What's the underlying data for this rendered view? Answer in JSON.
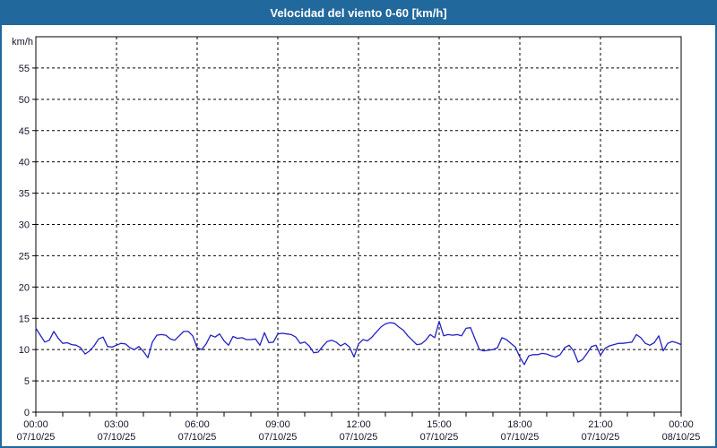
{
  "window": {
    "title": "Velocidad del viento 0-60 [km/h]"
  },
  "colors": {
    "frame": "#21689c",
    "title_text": "#ffffff",
    "plot_bg": "#ffffff",
    "axis": "#000000",
    "grid": "#000000",
    "text": "#14142a",
    "line": "#2222c2"
  },
  "y_axis": {
    "unit_label": "km/h",
    "min": 0,
    "max": 60,
    "tick_step": 5,
    "tick_labels": [
      "0",
      "5",
      "10",
      "15",
      "20",
      "25",
      "30",
      "35",
      "40",
      "45",
      "50",
      "55"
    ]
  },
  "x_axis": {
    "minor_tick_hours": 1,
    "major_tick_hours": 3,
    "labels": [
      {
        "time": "00:00",
        "date": "07/10/25"
      },
      {
        "time": "03:00",
        "date": "07/10/25"
      },
      {
        "time": "06:00",
        "date": "07/10/25"
      },
      {
        "time": "09:00",
        "date": "07/10/25"
      },
      {
        "time": "12:00",
        "date": "07/10/25"
      },
      {
        "time": "15:00",
        "date": "07/10/25"
      },
      {
        "time": "18:00",
        "date": "07/10/25"
      },
      {
        "time": "21:00",
        "date": "07/10/25"
      },
      {
        "time": "00:00",
        "date": "08/10/25"
      }
    ]
  },
  "chart_data": {
    "type": "line",
    "title": "Velocidad del viento 0-60 [km/h]",
    "series_name": "Velocidad del viento",
    "ylabel": "km/h",
    "ylim": [
      0,
      60
    ],
    "y_tick_step": 5,
    "x_start": "07/10/25 00:00",
    "x_end": "08/10/25 00:00",
    "sample_interval_minutes": 10,
    "grid": true,
    "legend": false,
    "values": [
      13.4,
      12.3,
      11.2,
      11.5,
      12.9,
      11.8,
      11.0,
      11.1,
      10.8,
      10.7,
      10.3,
      9.3,
      9.8,
      10.6,
      11.7,
      12.0,
      10.5,
      10.4,
      10.7,
      11.0,
      10.9,
      10.3,
      10.0,
      10.5,
      9.7,
      8.7,
      11.2,
      12.3,
      12.4,
      12.3,
      11.7,
      11.5,
      12.2,
      12.9,
      12.9,
      12.2,
      10.3,
      10.0,
      10.9,
      12.3,
      12.0,
      12.5,
      11.4,
      10.7,
      12.1,
      11.8,
      11.9,
      11.6,
      11.6,
      11.7,
      10.7,
      12.7,
      11.1,
      11.2,
      12.5,
      12.6,
      12.5,
      12.4,
      12.0,
      11.0,
      11.2,
      10.6,
      9.5,
      9.6,
      10.5,
      11.3,
      11.5,
      11.2,
      10.6,
      11.0,
      10.4,
      8.8,
      10.9,
      11.6,
      11.4,
      12.0,
      12.8,
      13.6,
      14.1,
      14.3,
      14.2,
      13.6,
      13.1,
      12.2,
      11.5,
      10.8,
      10.9,
      11.5,
      12.4,
      11.9,
      14.5,
      12.2,
      12.4,
      12.3,
      12.4,
      12.2,
      13.4,
      13.5,
      11.7,
      10.0,
      9.8,
      9.9,
      10.0,
      10.3,
      11.9,
      11.6,
      11.0,
      10.4,
      8.8,
      7.6,
      9.0,
      9.2,
      9.2,
      9.4,
      9.3,
      9.0,
      8.8,
      9.2,
      10.3,
      10.7,
      9.8,
      8.0,
      8.4,
      9.4,
      10.5,
      10.7,
      9.1,
      10.2,
      10.6,
      10.8,
      11.0,
      11.0,
      11.1,
      11.2,
      12.4,
      11.9,
      11.0,
      10.7,
      11.1,
      12.2,
      9.8,
      11.0,
      11.3,
      11.1,
      10.8
    ]
  }
}
